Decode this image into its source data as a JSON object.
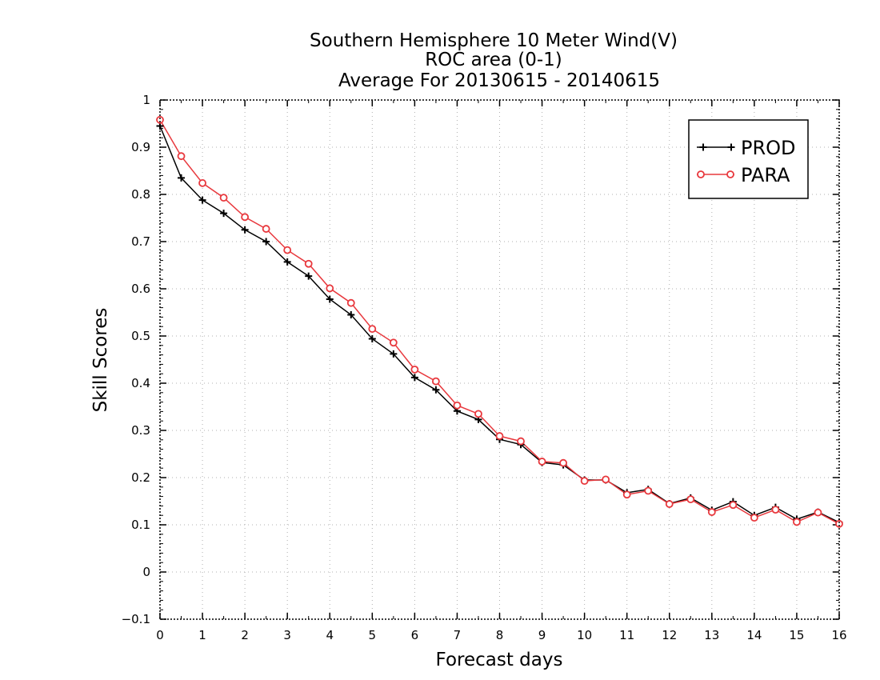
{
  "chart_data": {
    "type": "line",
    "title_lines": [
      "Southern Hemisphere 10 Meter Wind(V)",
      "ROC area (0-1)",
      "Average For 20130615 - 20140615"
    ],
    "xlabel": "Forecast days",
    "ylabel": "Skill Scores",
    "xlim": [
      0,
      16
    ],
    "ylim": [
      -0.1,
      1
    ],
    "x_ticks": [
      0,
      1,
      2,
      3,
      4,
      5,
      6,
      7,
      8,
      9,
      10,
      11,
      12,
      13,
      14,
      15,
      16
    ],
    "x_tick_labels": [
      "0",
      "1",
      "2",
      "3",
      "4",
      "5",
      "6",
      "7",
      "8",
      "9",
      "10",
      "11",
      "12",
      "13",
      "14",
      "15",
      "16"
    ],
    "y_ticks": [
      -0.1,
      0,
      0.1,
      0.2,
      0.3,
      0.4,
      0.5,
      0.6,
      0.7,
      0.8,
      0.9,
      1
    ],
    "y_tick_labels": [
      "−0.1",
      "0",
      "0.1",
      "0.2",
      "0.3",
      "0.4",
      "0.5",
      "0.6",
      "0.7",
      "0.8",
      "0.9",
      "1"
    ],
    "grid": true,
    "legend_position": "top-right",
    "x": [
      0,
      0.5,
      1,
      1.5,
      2,
      2.5,
      3,
      3.5,
      4,
      4.5,
      5,
      5.5,
      6,
      6.5,
      7,
      7.5,
      8,
      8.5,
      9,
      9.5,
      10,
      10.5,
      11,
      11.5,
      12,
      12.5,
      13,
      13.5,
      14,
      14.5,
      15,
      15.5,
      16
    ],
    "series": [
      {
        "name": "PROD",
        "color": "#000000",
        "marker": "plus",
        "values": [
          0.945,
          0.835,
          0.788,
          0.76,
          0.725,
          0.7,
          0.657,
          0.627,
          0.578,
          0.545,
          0.494,
          0.462,
          0.412,
          0.386,
          0.341,
          0.323,
          0.281,
          0.27,
          0.232,
          0.227,
          0.195,
          0.195,
          0.168,
          0.175,
          0.145,
          0.157,
          0.131,
          0.149,
          0.12,
          0.137,
          0.112,
          0.127,
          0.105
        ]
      },
      {
        "name": "PARA",
        "color": "#e8383d",
        "marker": "circle",
        "values": [
          0.958,
          0.881,
          0.824,
          0.793,
          0.752,
          0.727,
          0.682,
          0.653,
          0.601,
          0.57,
          0.515,
          0.486,
          0.429,
          0.404,
          0.353,
          0.335,
          0.288,
          0.277,
          0.234,
          0.231,
          0.193,
          0.196,
          0.164,
          0.172,
          0.144,
          0.154,
          0.127,
          0.142,
          0.115,
          0.132,
          0.106,
          0.126,
          0.102
        ]
      }
    ]
  }
}
